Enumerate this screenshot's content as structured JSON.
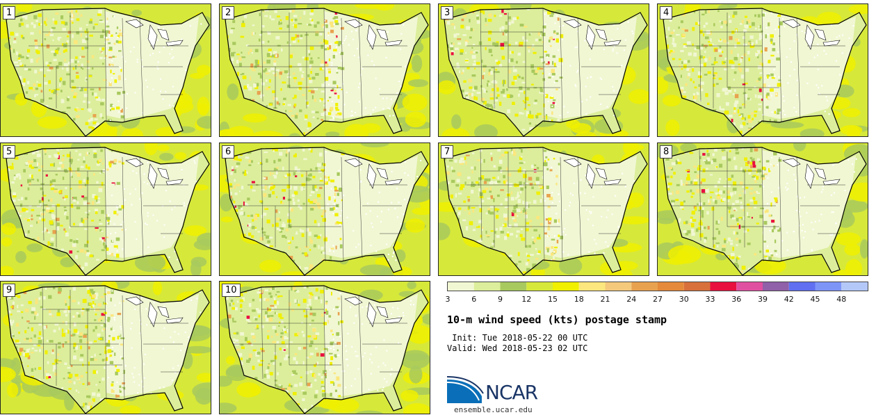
{
  "panels": [
    {
      "label": "1"
    },
    {
      "label": "2"
    },
    {
      "label": "3"
    },
    {
      "label": "4"
    },
    {
      "label": "5"
    },
    {
      "label": "6"
    },
    {
      "label": "7"
    },
    {
      "label": "8"
    },
    {
      "label": "9"
    },
    {
      "label": "10"
    }
  ],
  "colorbar": {
    "colors": [
      "#f1f7d3",
      "#dcee9b",
      "#a8c95e",
      "#d6e83a",
      "#f0f000",
      "#fbe77d",
      "#f4c97c",
      "#e8a24f",
      "#e58a3a",
      "#d8703c",
      "#e8103f",
      "#e050a0",
      "#9060a8",
      "#6070f0",
      "#7e95f8",
      "#b4c8f8"
    ],
    "ticks": [
      "3",
      "6",
      "9",
      "12",
      "15",
      "18",
      "21",
      "24",
      "27",
      "30",
      "33",
      "36",
      "39",
      "42",
      "45",
      "48"
    ]
  },
  "title": "10-m wind speed (kts) postage stamp",
  "init": " Init: Tue 2018-05-22 00 UTC",
  "valid": "Valid: Wed 2018-05-23 02 UTC",
  "logo": {
    "text": "NCAR",
    "site": "ensemble.ucar.edu",
    "brand_blue": "#0a6fb8",
    "brand_navy": "#1a3566"
  }
}
